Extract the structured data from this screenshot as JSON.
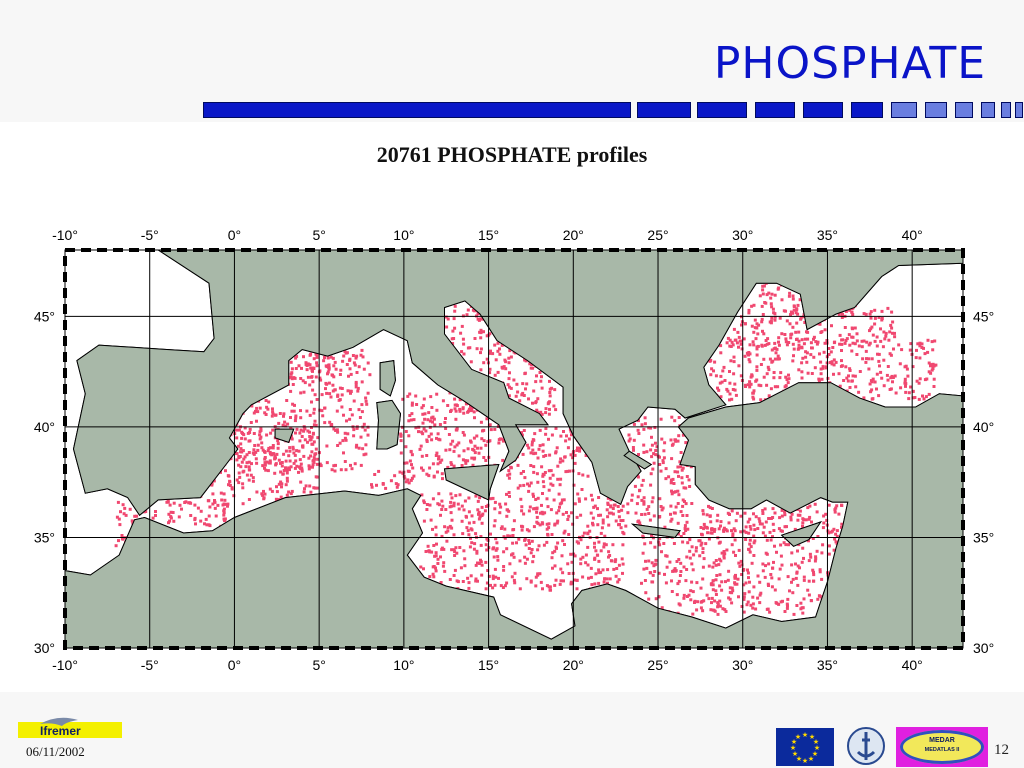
{
  "slide": {
    "title": "PHOSPHATE",
    "page_number": "12",
    "footer_date": "06/11/2002",
    "logos": {
      "ifremer": "Ifremer",
      "medar_line1": "MEDAR",
      "medar_line2": "MEDATLAS II"
    }
  },
  "map": {
    "title": "20761 PHOSPHATE profiles",
    "lon_labels": [
      "-10°",
      "-5°",
      "0°",
      "5°",
      "10°",
      "15°",
      "20°",
      "25°",
      "30°",
      "35°",
      "40°"
    ],
    "lat_labels": [
      "45°",
      "40°",
      "35°",
      "30°"
    ],
    "lon_range": [
      -10,
      43
    ],
    "lat_range": [
      30,
      48
    ],
    "colors": {
      "land": "#a8b8a8",
      "sea": "#ffffff",
      "profile_points": "#f04870",
      "coast": "#000000"
    }
  }
}
